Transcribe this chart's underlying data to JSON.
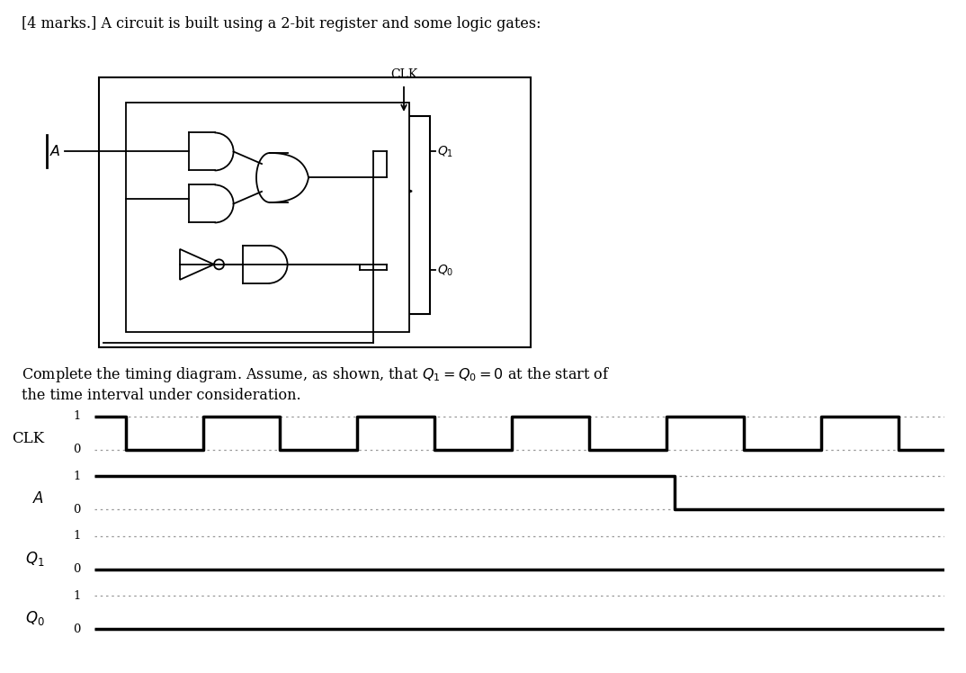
{
  "bg_color": "#ffffff",
  "title": "[4 marks.] A circuit is built using a 2-bit register and some logic gates:",
  "body_line1": "Complete the timing diagram. Assume, as shown, that $Q_1 = Q_0 = 0$ at the start of",
  "body_line2": "the time interval under consideration.",
  "total_time": 11,
  "signal_lw": 2.5,
  "dot_lw": 0.9,
  "dot_color": "#999999",
  "sig_color": "#000000",
  "clk_t": [
    0,
    0.4,
    0.4,
    1.4,
    1.4,
    2.4,
    2.4,
    3.4,
    3.4,
    4.4,
    4.4,
    5.4,
    5.4,
    6.4,
    6.4,
    7.4,
    7.4,
    8.4,
    8.4,
    9.4,
    9.4,
    10.4,
    10.4,
    11
  ],
  "clk_v": [
    1,
    1,
    0,
    0,
    1,
    1,
    0,
    0,
    1,
    1,
    0,
    0,
    1,
    1,
    0,
    0,
    1,
    1,
    0,
    0,
    1,
    1,
    0,
    0
  ],
  "a_t": [
    0,
    7.5,
    7.5,
    11
  ],
  "a_v": [
    1,
    1,
    0,
    0
  ],
  "q1_t": [
    0,
    0.35,
    0.35,
    11
  ],
  "q1_v": [
    0,
    0,
    0,
    0
  ],
  "q0_t": [
    0,
    0.35,
    0.35,
    11
  ],
  "q0_v": [
    0,
    0,
    0,
    0
  ]
}
